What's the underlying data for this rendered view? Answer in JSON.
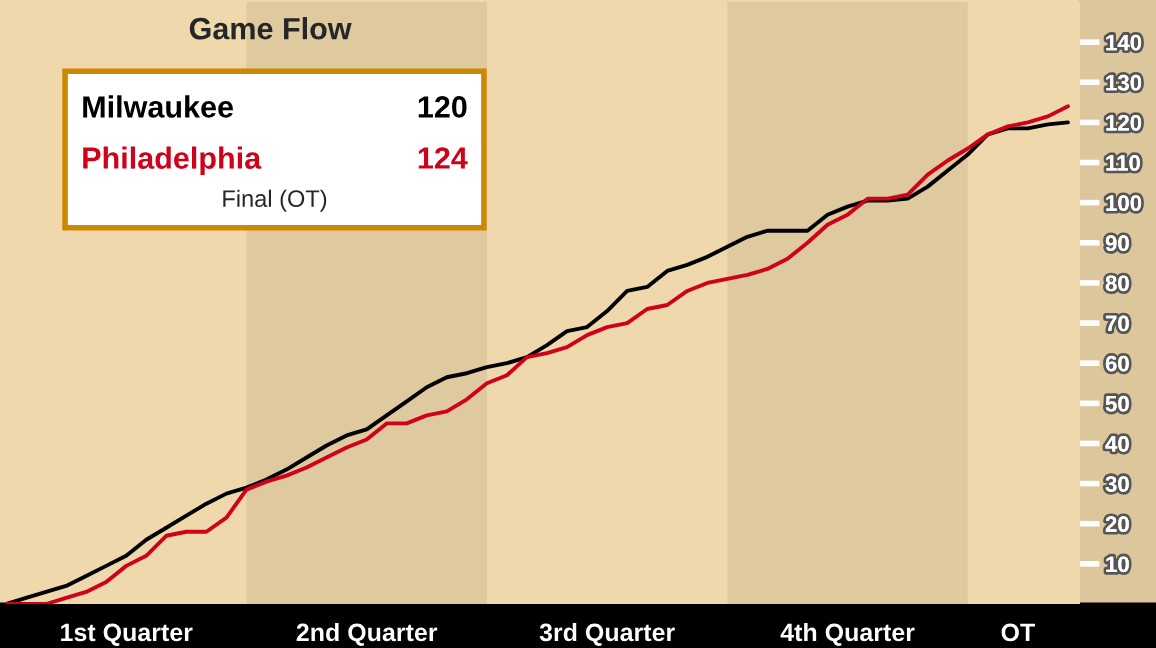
{
  "chart_data": {
    "type": "line",
    "title": "Game Flow",
    "categories": [
      null,
      null,
      null,
      null,
      null,
      null,
      null,
      null,
      null,
      null,
      null,
      null,
      null,
      null,
      null,
      null,
      null,
      null,
      null,
      null,
      null,
      null,
      null,
      null,
      null,
      null,
      null,
      null,
      null,
      null,
      null,
      null,
      null,
      null,
      null,
      null,
      null,
      null,
      null,
      null,
      null,
      null,
      null,
      null,
      null,
      null,
      null,
      null,
      null,
      null,
      null,
      null,
      null,
      null
    ],
    "ylim": [
      0,
      150
    ],
    "yticks": [
      10,
      20,
      30,
      40,
      50,
      60,
      70,
      80,
      90,
      100,
      110,
      120,
      130,
      140
    ],
    "series": [
      {
        "name": "Milwaukee",
        "color": "#000000",
        "values": [
          0,
          1.5,
          3,
          4.5,
          7,
          9.5,
          12,
          16,
          19,
          22,
          25,
          27.5,
          29,
          31,
          33.5,
          36.5,
          39.5,
          42,
          43.5,
          47,
          50.5,
          54,
          56.5,
          57.5,
          59,
          60,
          61.5,
          64.5,
          68,
          69,
          73,
          78,
          79,
          83,
          84.5,
          86.5,
          89,
          91.5,
          93,
          93,
          93,
          97,
          99,
          100.5,
          100.5,
          101,
          104,
          108,
          112,
          117,
          118.5,
          118.5,
          119.5,
          120
        ]
      },
      {
        "name": "Philadelphia",
        "color": "#d0021b",
        "values": [
          0,
          0,
          0,
          1.5,
          3,
          5.5,
          9.5,
          12,
          17,
          18,
          18,
          21.5,
          28.5,
          30.5,
          32,
          34,
          36.5,
          39,
          41,
          45,
          45,
          47,
          48,
          51,
          55,
          57,
          61.5,
          62.5,
          64,
          67,
          69,
          70,
          73.5,
          74.5,
          78,
          80,
          81,
          82,
          83.5,
          86,
          90,
          94.5,
          97,
          101,
          101,
          102,
          107,
          110.5,
          113.5,
          117,
          119,
          120,
          121.5,
          124
        ]
      }
    ],
    "annotations": [
      "120",
      "124",
      "Final (OT)",
      "1st Quarter",
      "2nd Quarter",
      "3rd Quarter",
      "4th Quarter",
      "OT"
    ],
    "grid": false
  }
}
